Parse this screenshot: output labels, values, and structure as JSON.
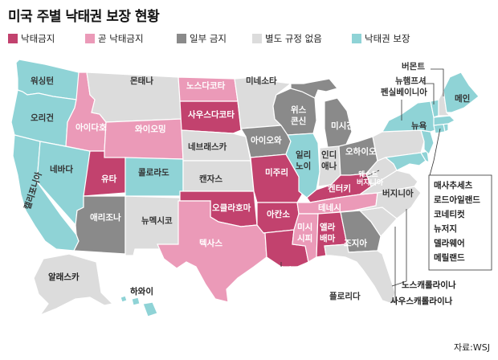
{
  "title": "미국 주별 낙태권 보장 현황",
  "source": "자료:WSJ",
  "colors": {
    "banned": "#c2426e",
    "soon_banned": "#eb9ab8",
    "partial": "#8a8a8a",
    "no_rule": "#dcdcdc",
    "protected": "#8fd3d6"
  },
  "legend": [
    {
      "key": "banned",
      "label": "낙태금지"
    },
    {
      "key": "soon_banned",
      "label": "곧 낙태금지"
    },
    {
      "key": "partial",
      "label": "일부 금지"
    },
    {
      "key": "no_rule",
      "label": "별도 규정 없음"
    },
    {
      "key": "protected",
      "label": "낙태권 보장"
    }
  ],
  "states": [
    {
      "name": "워싱턴",
      "status": "protected"
    },
    {
      "name": "오리건",
      "status": "protected"
    },
    {
      "name": "캘리포니아",
      "status": "protected"
    },
    {
      "name": "네바다",
      "status": "protected"
    },
    {
      "name": "아이다호",
      "status": "soon_banned"
    },
    {
      "name": "몬태나",
      "status": "no_rule"
    },
    {
      "name": "와이오밍",
      "status": "soon_banned"
    },
    {
      "name": "유타",
      "status": "banned"
    },
    {
      "name": "콜로라도",
      "status": "protected"
    },
    {
      "name": "애리조나",
      "status": "partial"
    },
    {
      "name": "뉴멕시코",
      "status": "no_rule"
    },
    {
      "name": "노스다코타",
      "status": "soon_banned"
    },
    {
      "name": "사우스다코타",
      "status": "banned"
    },
    {
      "name": "네브래스카",
      "status": "no_rule"
    },
    {
      "name": "캔자스",
      "status": "no_rule"
    },
    {
      "name": "오클라호마",
      "status": "banned"
    },
    {
      "name": "텍사스",
      "status": "soon_banned"
    },
    {
      "name": "미네소타",
      "status": "no_rule"
    },
    {
      "name": "아이오와",
      "status": "partial"
    },
    {
      "name": "미주리",
      "status": "banned"
    },
    {
      "name": "아칸소",
      "status": "banned"
    },
    {
      "name": "루이지애나",
      "status": "banned"
    },
    {
      "name": "위스콘신",
      "status": "partial"
    },
    {
      "name": "일리노이",
      "status": "protected"
    },
    {
      "name": "미시간",
      "status": "partial"
    },
    {
      "name": "인디애나",
      "status": "no_rule"
    },
    {
      "name": "오하이오",
      "status": "partial"
    },
    {
      "name": "켄터키",
      "status": "banned"
    },
    {
      "name": "테네시",
      "status": "soon_banned"
    },
    {
      "name": "미시시피",
      "status": "soon_banned"
    },
    {
      "name": "앨라배마",
      "status": "banned"
    },
    {
      "name": "조지아",
      "status": "partial"
    },
    {
      "name": "플로리다",
      "status": "no_rule"
    },
    {
      "name": "웨스트버지니아",
      "status": "no_rule"
    },
    {
      "name": "버지니아",
      "status": "no_rule"
    },
    {
      "name": "노스캐롤라이나",
      "status": "no_rule"
    },
    {
      "name": "사우스캐롤라이나",
      "status": "no_rule"
    },
    {
      "name": "펜실베이니아",
      "status": "no_rule"
    },
    {
      "name": "뉴욕",
      "status": "protected"
    },
    {
      "name": "버몬트",
      "status": "protected"
    },
    {
      "name": "뉴햄프셔",
      "status": "no_rule"
    },
    {
      "name": "메인",
      "status": "protected"
    },
    {
      "name": "매사추세츠",
      "status": "protected"
    },
    {
      "name": "로드아일랜드",
      "status": "protected"
    },
    {
      "name": "코네티컷",
      "status": "protected"
    },
    {
      "name": "뉴저지",
      "status": "protected"
    },
    {
      "name": "델라웨어",
      "status": "protected"
    },
    {
      "name": "메릴랜드",
      "status": "protected"
    },
    {
      "name": "알래스카",
      "status": "no_rule"
    },
    {
      "name": "하와이",
      "status": "protected"
    }
  ],
  "labels": {
    "washington": "워싱턴",
    "oregon": "오리건",
    "california": "캘리포니아",
    "nevada": "네바다",
    "idaho": "아이다호",
    "montana": "몬태나",
    "wyoming": "와이오밍",
    "utah": "유타",
    "colorado": "콜로라도",
    "arizona": "애리조나",
    "newmexico": "뉴멕시코",
    "northdakota": "노스다코타",
    "southdakota": "사우스다코타",
    "nebraska": "네브래스카",
    "kansas": "캔자스",
    "oklahoma": "오클라호마",
    "texas": "텍사스",
    "minnesota": "미네소타",
    "iowa": "아이오와",
    "missouri": "미주리",
    "arkansas": "아칸소",
    "louisiana": "루이지애나",
    "wisconsin_1": "위스",
    "wisconsin_2": "콘신",
    "illinois_1": "일리",
    "illinois_2": "노이",
    "michigan": "미시간",
    "indiana_1": "인디",
    "indiana_2": "애나",
    "ohio": "오하이오",
    "kentucky": "켄터키",
    "tennessee": "테네시",
    "mississippi_1": "미시",
    "mississippi_2": "시피",
    "alabama_1": "앨라",
    "alabama_2": "배마",
    "georgia": "조지아",
    "florida": "플로리다",
    "westvirginia_1": "웨스트",
    "westvirginia_2": "버지니아",
    "virginia": "버지니아",
    "northcarolina": "노스캐롤라이나",
    "southcarolina": "사우스캐롤라이나",
    "pennsylvania": "펜실베이니아",
    "newyork": "뉴욕",
    "vermont": "버몬트",
    "newhampshire": "뉴햄프셔",
    "maine": "메인",
    "massachusetts": "매사추세츠",
    "rhodeisland": "로드아일랜드",
    "connecticut": "코네티컷",
    "newjersey": "뉴저지",
    "delaware": "델라웨어",
    "maryland": "메릴랜드",
    "alaska": "알래스카",
    "hawaii": "하와이"
  }
}
